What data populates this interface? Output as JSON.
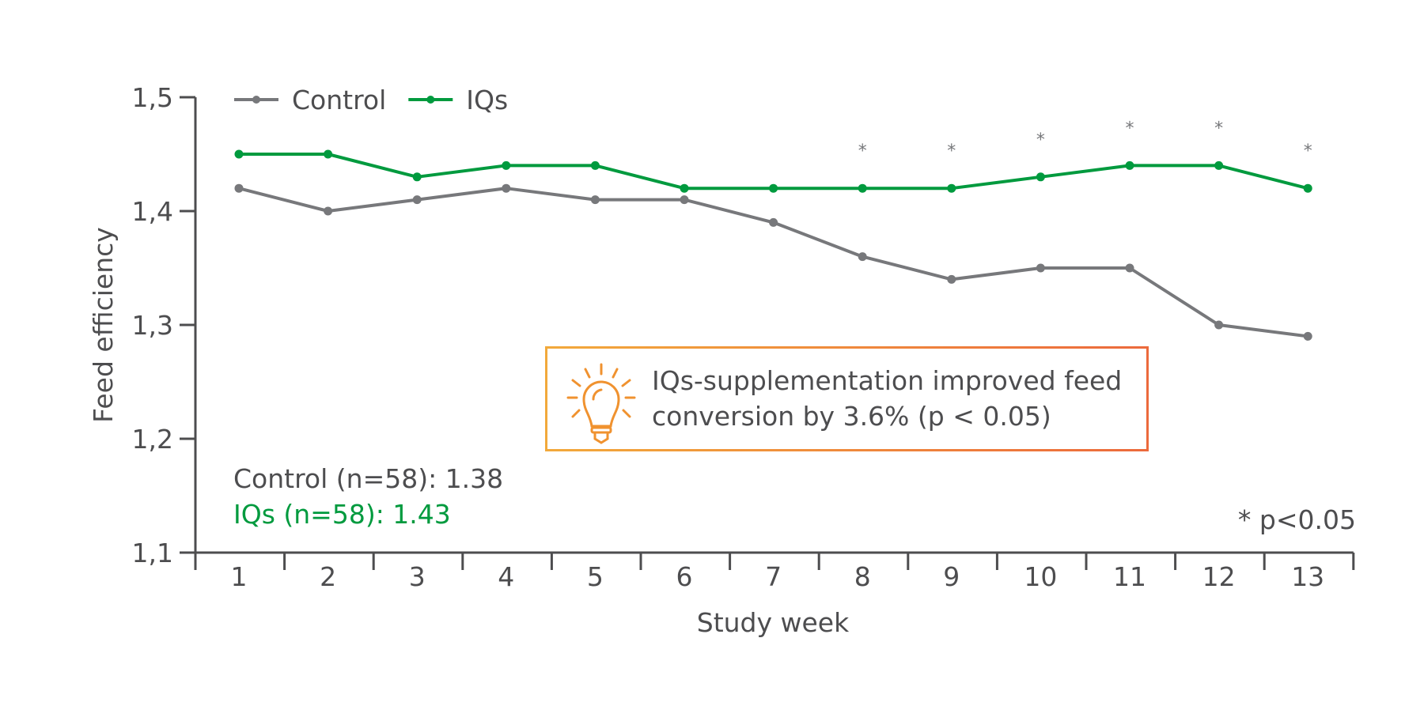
{
  "chart_data": {
    "type": "line",
    "xlabel": "Study week",
    "ylabel": "Feed efficiency",
    "x": [
      1,
      2,
      3,
      4,
      5,
      6,
      7,
      8,
      9,
      10,
      11,
      12,
      13
    ],
    "x_tick_labels": [
      "1",
      "2",
      "3",
      "4",
      "5",
      "6",
      "7",
      "8",
      "9",
      "10",
      "11",
      "12",
      "13"
    ],
    "ylim": [
      1.1,
      1.5
    ],
    "y_ticks": [
      1.1,
      1.2,
      1.3,
      1.4,
      1.5
    ],
    "y_tick_labels": [
      "1,1",
      "1,2",
      "1,3",
      "1,4",
      "1,5"
    ],
    "grid": false,
    "legend_placement": "top-left",
    "series": [
      {
        "name": "Control",
        "color": "#77787b",
        "values": [
          1.42,
          1.4,
          1.41,
          1.42,
          1.41,
          1.41,
          1.39,
          1.36,
          1.34,
          1.35,
          1.35,
          1.3,
          1.29
        ]
      },
      {
        "name": "IQs",
        "color": "#009a3e",
        "values": [
          1.45,
          1.45,
          1.43,
          1.44,
          1.44,
          1.42,
          1.42,
          1.42,
          1.42,
          1.43,
          1.44,
          1.44,
          1.42
        ]
      }
    ],
    "significance_marker": "*",
    "significant_weeks": [
      8,
      9,
      10,
      11,
      12,
      13
    ],
    "annotations": {
      "control_mean": "Control (n=58): 1.38",
      "iqs_mean": "IQs (n=58): 1.43",
      "significance_note": "* p<0.05",
      "callout_line1": "IQs-supplementation improved feed",
      "callout_line2": "conversion by 3.6% (p < 0.05)",
      "callout_icon": "lightbulb-icon",
      "callout_border_colors": [
        "#f2a93b",
        "#ec6a3c"
      ]
    }
  }
}
